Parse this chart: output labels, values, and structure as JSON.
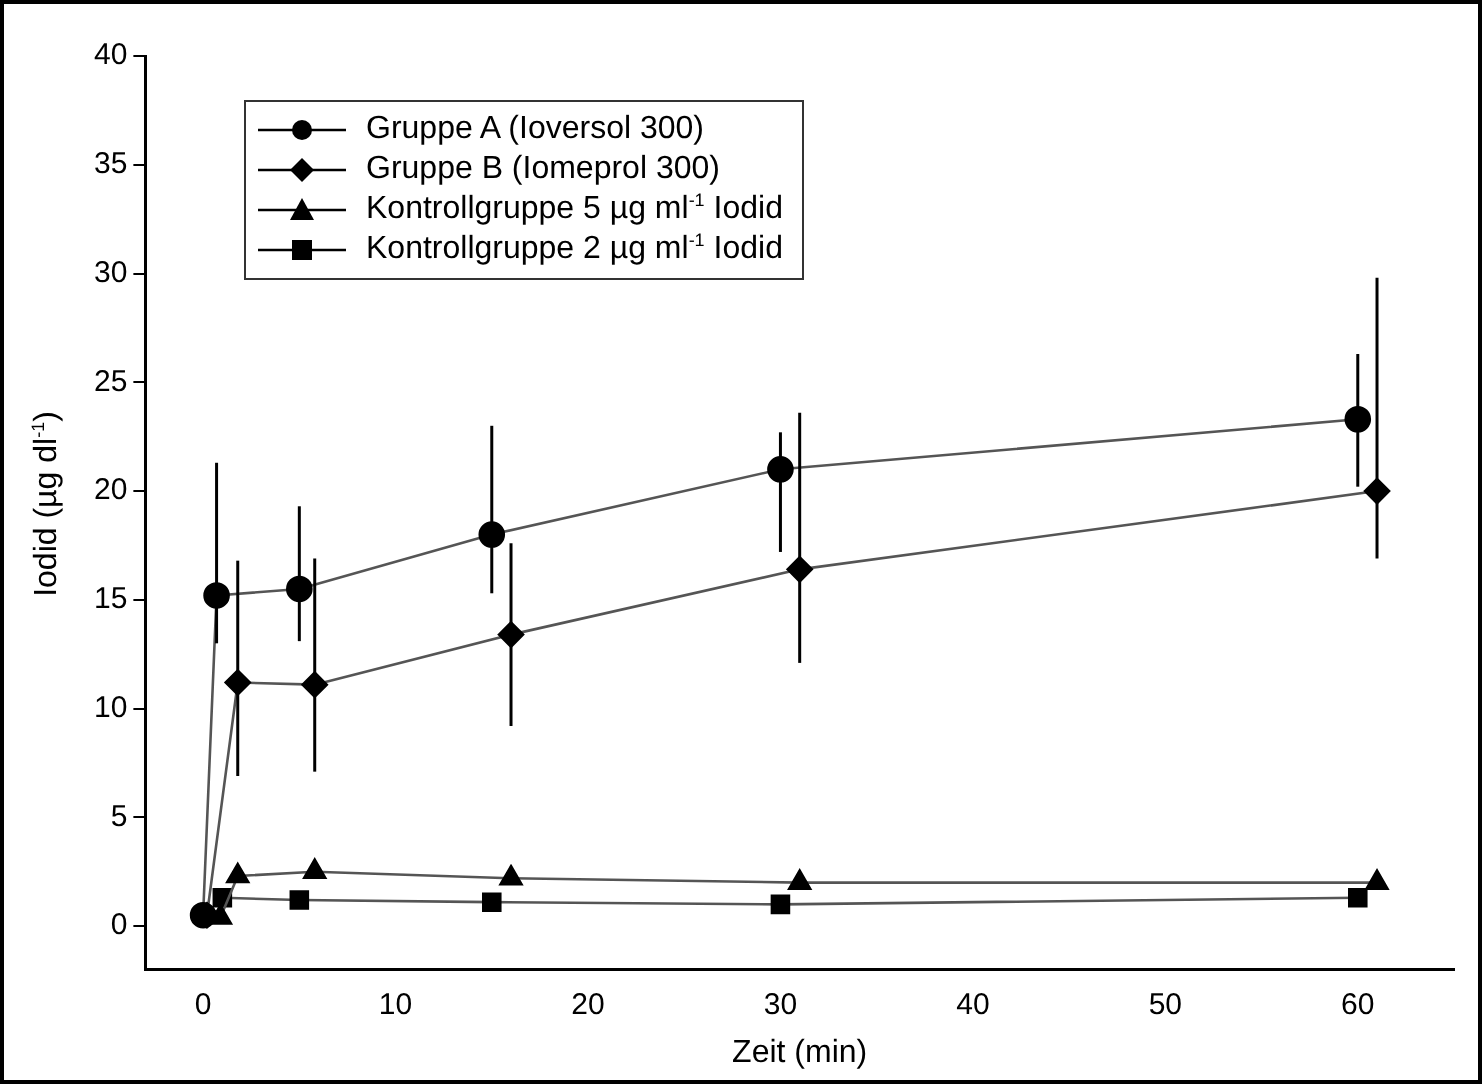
{
  "chart_data": {
    "type": "line",
    "xlabel": "Zeit (min)",
    "ylabel": "Iodid (µg dl$^{-1}$)",
    "xlim": [
      -3,
      65
    ],
    "xticks": [
      0,
      10,
      20,
      30,
      40,
      50,
      60
    ],
    "ylim": [
      -2,
      40
    ],
    "yticks": [
      0,
      5,
      10,
      15,
      20,
      25,
      30,
      35,
      40
    ],
    "grid": false,
    "legend": "top left",
    "line_style": "solid",
    "series": [
      {
        "name": "Gruppe A (Ioversol 300)",
        "color": "#000000",
        "marker": "circle",
        "x": [
          0,
          0.7,
          5,
          15,
          30,
          60
        ],
        "values": [
          0.5,
          15.2,
          15.5,
          18,
          21,
          23.3
        ],
        "errors": [
          null,
          [
            13,
            21.3
          ],
          [
            13.1,
            19.3
          ],
          [
            15.3,
            23
          ],
          [
            17.2,
            22.7
          ],
          [
            20.2,
            26.3
          ]
        ]
      },
      {
        "name": "Gruppe B (Iomeprol 300)",
        "color": "#000000",
        "marker": "diamond",
        "x": [
          0.2,
          1.8,
          5.8,
          16,
          31,
          61
        ],
        "values": [
          0.5,
          11.2,
          11.1,
          13.4,
          16.4,
          20
        ],
        "errors": [
          null,
          [
            6.9,
            16.8
          ],
          [
            7.1,
            16.9
          ],
          [
            9.2,
            17.6
          ],
          [
            12.1,
            23.6
          ],
          [
            16.9,
            29.8
          ]
        ]
      },
      {
        "name": "Kontrollgruppe 5 µg ml$^{-1}$ Iodid",
        "color": "#000000",
        "marker": "triangle",
        "x": [
          0.9,
          1.8,
          5.8,
          16,
          31,
          61
        ],
        "values": [
          0.4,
          2.3,
          2.5,
          2.2,
          2,
          2
        ]
      },
      {
        "name": "Kontrollgruppe 2 µg ml$^{-1}$ Iodid",
        "color": "#000000",
        "marker": "square",
        "x": [
          1,
          5,
          15,
          30,
          60
        ],
        "values": [
          1.3,
          1.2,
          1.1,
          1,
          1.3
        ]
      }
    ]
  }
}
